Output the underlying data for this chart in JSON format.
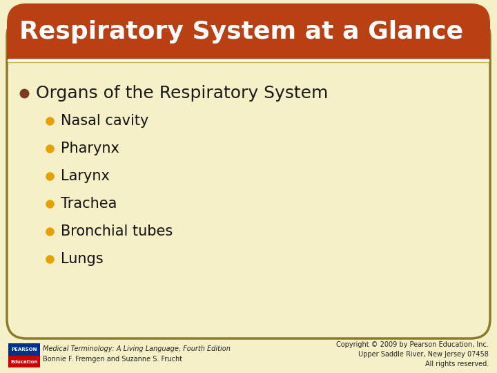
{
  "title": "Respiratory System at a Glance",
  "title_color": "#FFFFFF",
  "title_bg_color": "#B84012",
  "title_fontsize": 26,
  "bg_color": "#F5F0C8",
  "border_color": "#8B7A2A",
  "main_bullet_text": "Organs of the Respiratory System",
  "main_bullet_color": "#7A3B1E",
  "main_fontsize": 18,
  "sub_bullets": [
    "Nasal cavity",
    "Pharynx",
    "Larynx",
    "Trachea",
    "Bronchial tubes",
    "Lungs"
  ],
  "sub_bullet_color": "#E8A000",
  "sub_fontsize": 15,
  "sub_text_color": "#111111",
  "footer_left_italic": "Medical Terminology: A Living Language, Fourth Edition",
  "footer_left_normal": "Bonnie F. Fremgen and Suzanne S. Frucht",
  "footer_right": "Copyright © 2009 by Pearson Education, Inc.\nUpper Saddle River, New Jersey 07458\nAll rights reserved.",
  "footer_fontsize": 7,
  "pearson_box_color_top": "#003087",
  "pearson_box_color_bottom": "#CC0000",
  "separator_color": "#C8B84A",
  "content_bg": "#F5F0C8"
}
